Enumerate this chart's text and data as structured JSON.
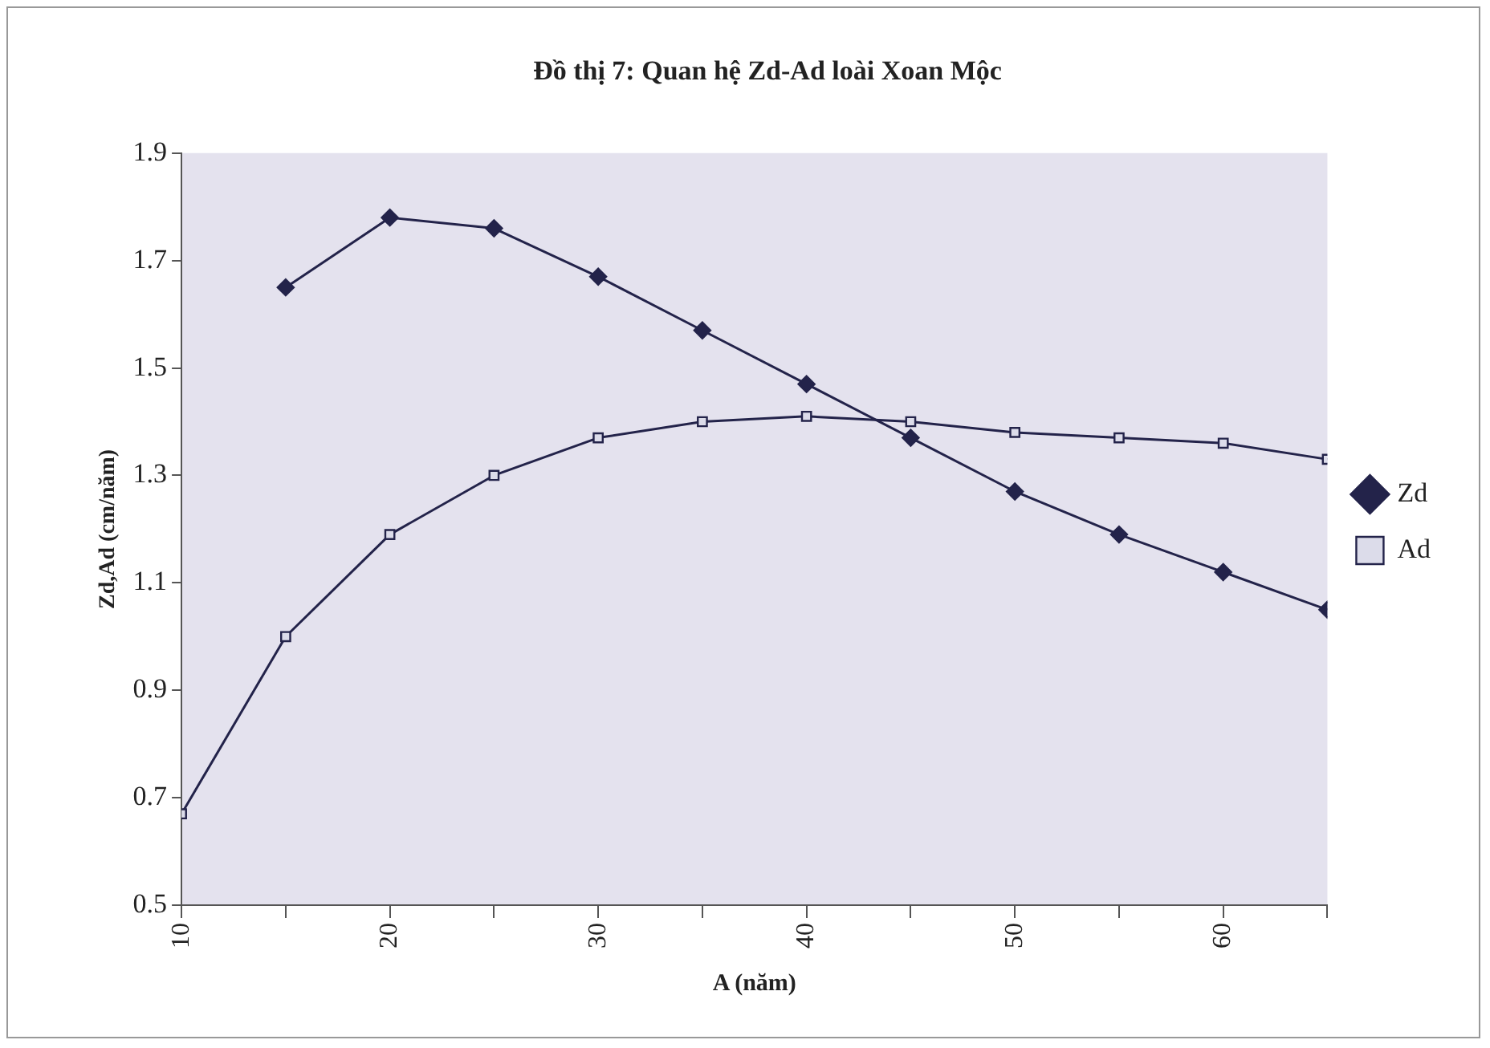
{
  "chart_data": {
    "type": "line",
    "title": "Đồ thị 7: Quan hệ Zd-Ad loài Xoan Mộc",
    "xlabel": "A (năm)",
    "ylabel": "Zd,Ad (cm/năm)",
    "x": [
      10,
      15,
      20,
      25,
      30,
      35,
      40,
      45,
      50,
      55,
      60,
      65
    ],
    "xlim": [
      10,
      65
    ],
    "xticks": [
      10,
      {
        "value": 15,
        "label": null
      },
      20,
      {
        "value": 25,
        "label": null
      },
      30,
      {
        "value": 35,
        "label": null
      },
      40,
      {
        "value": 45,
        "label": null
      },
      50,
      {
        "value": 55,
        "label": null
      },
      60,
      {
        "value": 65,
        "label": null
      }
    ],
    "ylim": [
      0.5,
      1.9
    ],
    "yticks": [
      0.5,
      0.7,
      0.9,
      1.1,
      1.3,
      1.5,
      1.7,
      1.9
    ],
    "grid": false,
    "legend": "right",
    "line_style": "solid",
    "series": [
      {
        "name": "Zd",
        "color": "#23234a",
        "marker": "diamond",
        "values": [
          null,
          1.65,
          1.78,
          1.76,
          1.67,
          1.57,
          1.47,
          1.37,
          1.27,
          1.19,
          1.12,
          1.05
        ]
      },
      {
        "name": "Ad",
        "color": "#23234a",
        "marker": "square",
        "values": [
          0.67,
          1.0,
          1.19,
          1.3,
          1.37,
          1.4,
          1.41,
          1.4,
          1.38,
          1.37,
          1.36,
          1.33
        ]
      }
    ]
  }
}
